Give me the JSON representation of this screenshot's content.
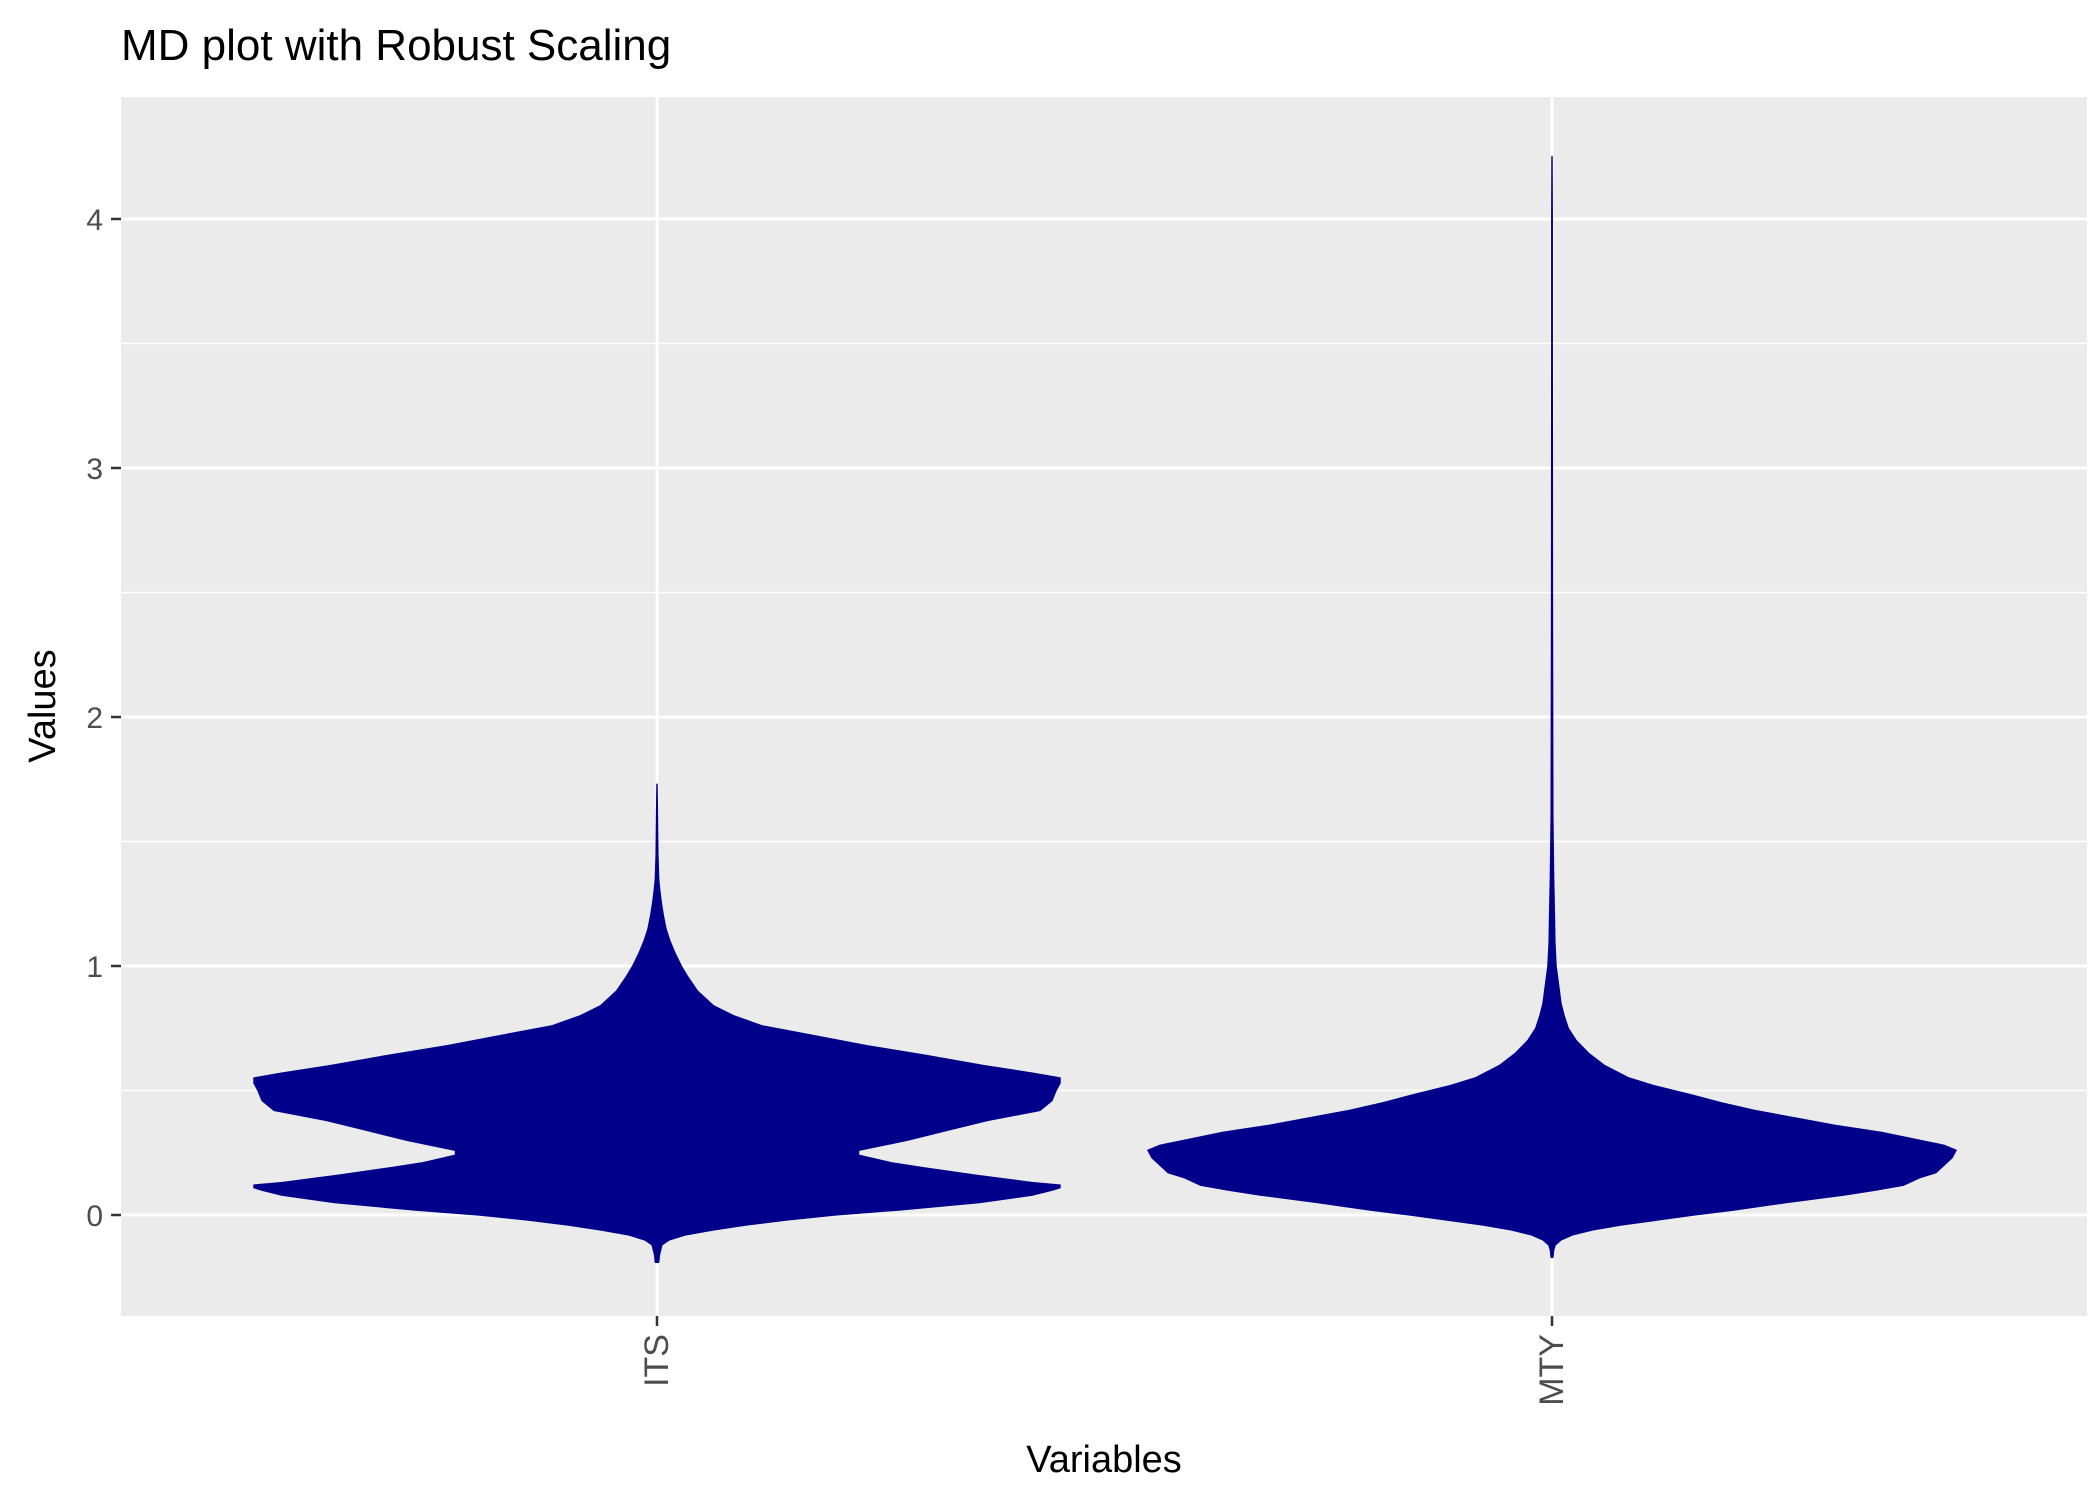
{
  "chart_data": {
    "type": "violin",
    "title": "MD plot with Robust Scaling",
    "xlabel": "Variables",
    "ylabel": "Values",
    "categories": [
      "ITS",
      "MTY"
    ],
    "ylim": [
      -0.4,
      4.45
    ],
    "yticks": [
      0,
      1,
      2,
      3,
      4
    ],
    "ytick_labels": [
      "0",
      "1",
      "2",
      "3",
      "4"
    ],
    "y_minor_gridlines": [
      0.5,
      1.5,
      2.5,
      3.5
    ],
    "grid": true,
    "legend": "none",
    "fill_color": "#00008B",
    "panel_background": "#EBEBEB",
    "gridline_color": "#FFFFFF",
    "series": [
      {
        "category": "ITS",
        "min": -0.19,
        "max": 1.73,
        "density_profile": [
          [
            -0.19,
            0.004
          ],
          [
            -0.16,
            0.006
          ],
          [
            -0.12,
            0.012
          ],
          [
            -0.1,
            0.03
          ],
          [
            -0.08,
            0.07
          ],
          [
            -0.06,
            0.14
          ],
          [
            -0.04,
            0.22
          ],
          [
            -0.02,
            0.32
          ],
          [
            0.0,
            0.44
          ],
          [
            0.02,
            0.6
          ],
          [
            0.05,
            0.8
          ],
          [
            0.08,
            0.93
          ],
          [
            0.1,
            0.98
          ],
          [
            0.11,
            1.0
          ],
          [
            0.12,
            1.0
          ],
          [
            0.13,
            0.93
          ],
          [
            0.16,
            0.79
          ],
          [
            0.19,
            0.66
          ],
          [
            0.21,
            0.58
          ],
          [
            0.24,
            0.5
          ],
          [
            0.26,
            0.5
          ],
          [
            0.3,
            0.62
          ],
          [
            0.34,
            0.72
          ],
          [
            0.38,
            0.82
          ],
          [
            0.42,
            0.95
          ],
          [
            0.46,
            0.98
          ],
          [
            0.5,
            0.99
          ],
          [
            0.53,
            1.0
          ],
          [
            0.55,
            1.0
          ],
          [
            0.57,
            0.93
          ],
          [
            0.6,
            0.81
          ],
          [
            0.64,
            0.67
          ],
          [
            0.68,
            0.52
          ],
          [
            0.72,
            0.39
          ],
          [
            0.76,
            0.26
          ],
          [
            0.8,
            0.19
          ],
          [
            0.84,
            0.14
          ],
          [
            0.9,
            0.1
          ],
          [
            0.96,
            0.075
          ],
          [
            1.0,
            0.06
          ],
          [
            1.05,
            0.045
          ],
          [
            1.1,
            0.032
          ],
          [
            1.15,
            0.022
          ],
          [
            1.2,
            0.016
          ],
          [
            1.25,
            0.011
          ],
          [
            1.3,
            0.007
          ],
          [
            1.35,
            0.004
          ],
          [
            1.45,
            0.002
          ],
          [
            1.6,
            0.001
          ],
          [
            1.73,
            0.0
          ]
        ]
      },
      {
        "category": "MTY",
        "min": -0.17,
        "max": 4.25,
        "density_profile": [
          [
            -0.17,
            0.002
          ],
          [
            -0.14,
            0.004
          ],
          [
            -0.12,
            0.008
          ],
          [
            -0.1,
            0.022
          ],
          [
            -0.08,
            0.05
          ],
          [
            -0.06,
            0.1
          ],
          [
            -0.04,
            0.17
          ],
          [
            -0.02,
            0.26
          ],
          [
            0.0,
            0.35
          ],
          [
            0.02,
            0.45
          ],
          [
            0.05,
            0.58
          ],
          [
            0.08,
            0.72
          ],
          [
            0.1,
            0.8
          ],
          [
            0.12,
            0.87
          ],
          [
            0.15,
            0.91
          ],
          [
            0.17,
            0.95
          ],
          [
            0.2,
            0.97
          ],
          [
            0.23,
            0.99
          ],
          [
            0.26,
            1.0
          ],
          [
            0.28,
            0.97
          ],
          [
            0.3,
            0.91
          ],
          [
            0.33,
            0.82
          ],
          [
            0.36,
            0.7
          ],
          [
            0.39,
            0.6
          ],
          [
            0.42,
            0.5
          ],
          [
            0.45,
            0.42
          ],
          [
            0.48,
            0.35
          ],
          [
            0.52,
            0.25
          ],
          [
            0.55,
            0.19
          ],
          [
            0.6,
            0.13
          ],
          [
            0.65,
            0.09
          ],
          [
            0.7,
            0.06
          ],
          [
            0.75,
            0.04
          ],
          [
            0.8,
            0.03
          ],
          [
            0.85,
            0.022
          ],
          [
            0.9,
            0.018
          ],
          [
            1.0,
            0.01
          ],
          [
            1.1,
            0.007
          ],
          [
            1.2,
            0.006
          ],
          [
            1.35,
            0.004
          ],
          [
            1.6,
            0.002
          ],
          [
            2.0,
            0.0015
          ],
          [
            2.5,
            0.001
          ],
          [
            3.0,
            0.0008
          ],
          [
            3.5,
            0.0006
          ],
          [
            4.0,
            0.0004
          ],
          [
            4.25,
            0.0
          ]
        ]
      }
    ]
  }
}
